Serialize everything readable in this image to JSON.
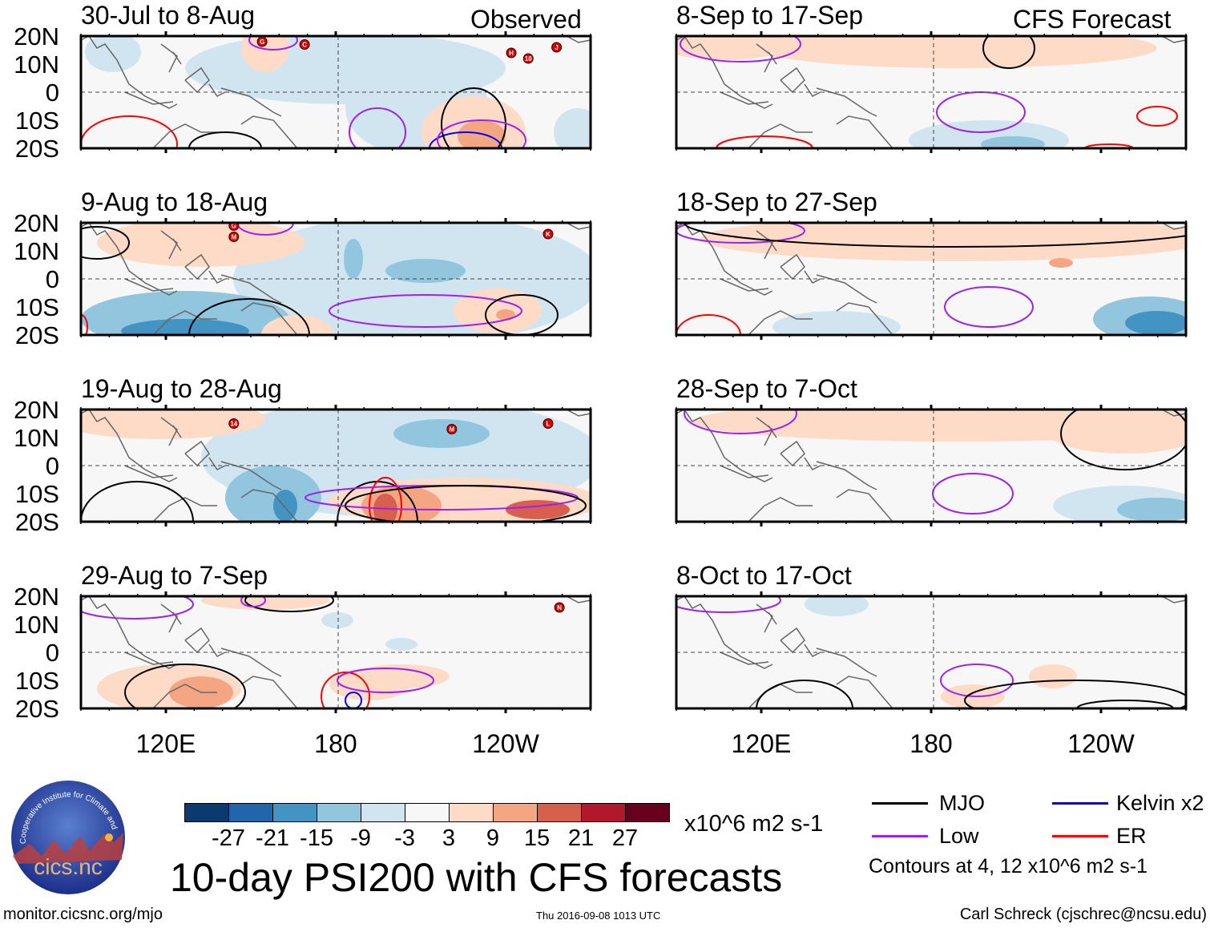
{
  "header": {
    "observed_label": "Observed",
    "forecast_label": "CFS Forecast"
  },
  "panels": [
    {
      "title": "30-Jul to 8-Aug",
      "storms": [
        [
          "G",
          154,
          18
        ],
        [
          "C",
          169,
          17
        ],
        [
          "H",
          242,
          14
        ],
        [
          "10",
          248,
          12
        ],
        [
          "J",
          258,
          16
        ]
      ]
    },
    {
      "title": "9-Aug to 18-Aug",
      "storms": [
        [
          "G",
          144,
          19
        ],
        [
          "M",
          144,
          15
        ],
        [
          "K",
          255,
          16
        ]
      ]
    },
    {
      "title": "19-Aug to 28-Aug",
      "storms": [
        [
          "14",
          144,
          15
        ],
        [
          "M",
          221,
          13
        ],
        [
          "L",
          255,
          15
        ]
      ]
    },
    {
      "title": "29-Aug to 7-Sep",
      "storms": [
        [
          "N",
          259,
          16
        ]
      ]
    },
    {
      "title": "8-Sep to 17-Sep",
      "storms": []
    },
    {
      "title": "18-Sep to 27-Sep",
      "storms": []
    },
    {
      "title": "28-Sep to 7-Oct",
      "storms": []
    },
    {
      "title": "8-Oct to 17-Oct",
      "storms": []
    }
  ],
  "axes": {
    "lat_labels": [
      "20N",
      "10N",
      "0",
      "10S",
      "20S"
    ],
    "lon_labels": [
      "120E",
      "180",
      "120W"
    ]
  },
  "colorbar": {
    "colors": [
      "#0b3a6e",
      "#2166ac",
      "#4393c3",
      "#92c5de",
      "#d1e5f0",
      "#f7f7f7",
      "#fddbc7",
      "#f4a582",
      "#d6604d",
      "#b2182b",
      "#67001f"
    ],
    "labels": [
      "-27",
      "-21",
      "-15",
      "-9",
      "-3",
      "3",
      "9",
      "15",
      "21",
      "27"
    ],
    "units": "x10^6 m2 s-1"
  },
  "title": "10-day PSI200 with CFS forecasts",
  "legend": {
    "items": [
      {
        "label": "MJO",
        "color": "#000000"
      },
      {
        "label": "Kelvin x2",
        "color": "#0000ff"
      },
      {
        "label": "Low",
        "color": "#a020f0"
      },
      {
        "label": "ER",
        "color": "#ff0000"
      }
    ],
    "note": "Contours at 4, 12 x10^6 m2 s-1"
  },
  "logo": {
    "text": "cics.nc",
    "arc_text": "Cooperative Institute for Climate and Satellites"
  },
  "footer": {
    "url": "monitor.cicsnc.org/mjo",
    "timestamp": "Thu 2016-09-08 1013 UTC",
    "author": "Carl Schreck (cjschrec@ncsu.edu)"
  }
}
